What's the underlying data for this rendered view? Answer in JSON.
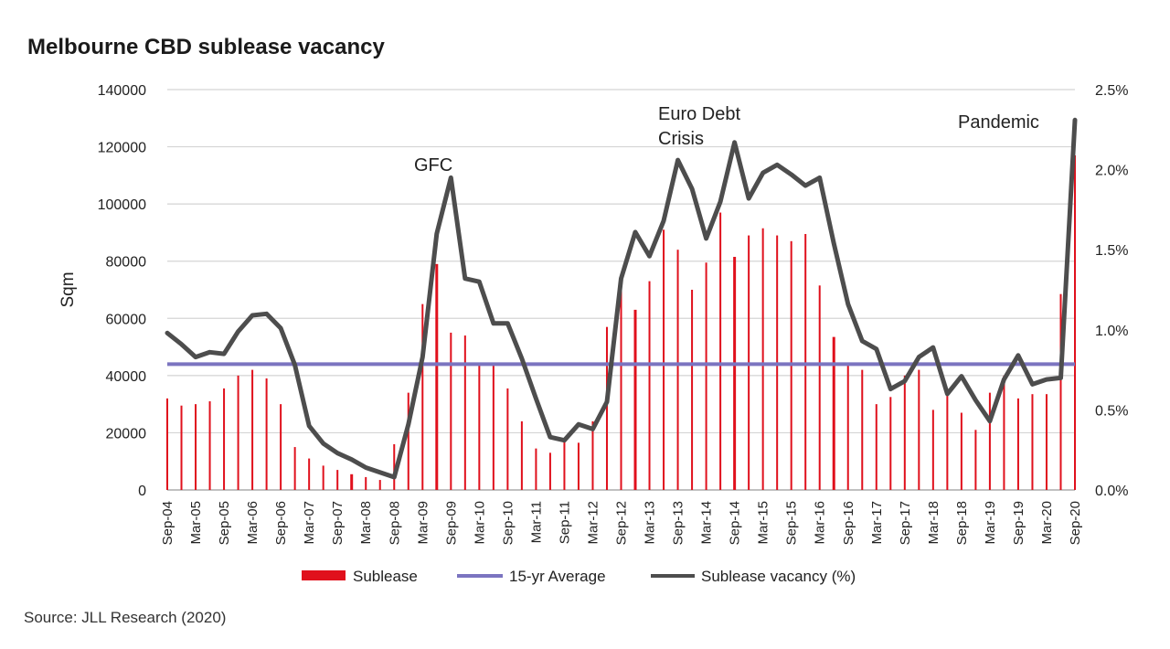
{
  "title": "Melbourne CBD sublease vacancy",
  "source": "Source: JLL Research (2020)",
  "chart_data": {
    "type": "bar",
    "title": "Melbourne CBD sublease vacancy",
    "ylabel": "Sqm",
    "ylim": [
      0,
      140000
    ],
    "y_ticks": [
      "0",
      "20000",
      "40000",
      "60000",
      "80000",
      "100000",
      "120000",
      "140000"
    ],
    "y2lim": [
      0,
      0.025
    ],
    "y2_ticks": [
      "0.0%",
      "0.5%",
      "1.0%",
      "1.5%",
      "2.0%",
      "2.5%"
    ],
    "grid": true,
    "legend_position": "bottom",
    "colors": {
      "sublease": "#e0101c",
      "average": "#7b74c0",
      "vacancy": "#4d4d4d"
    },
    "x_tick_labels": [
      "Sep-04",
      "Mar-05",
      "Sep-05",
      "Mar-06",
      "Sep-06",
      "Mar-07",
      "Sep-07",
      "Mar-08",
      "Sep-08",
      "Mar-09",
      "Sep-09",
      "Mar-10",
      "Sep-10",
      "Mar-11",
      "Sep-11",
      "Mar-12",
      "Sep-12",
      "Mar-13",
      "Sep-13",
      "Mar-14",
      "Sep-14",
      "Mar-15",
      "Sep-15",
      "Mar-16",
      "Sep-16",
      "Mar-17",
      "Sep-17",
      "Mar-18",
      "Sep-18",
      "Mar-19",
      "Sep-19",
      "Mar-20",
      "Sep-20"
    ],
    "series": [
      {
        "name": "Sublease",
        "type": "bar",
        "axis": "left",
        "values": [
          32000,
          29500,
          30000,
          31000,
          35500,
          40000,
          42000,
          39000,
          30000,
          15000,
          11000,
          8500,
          7000,
          5500,
          4500,
          3500,
          16000,
          34000,
          65000,
          79000,
          55000,
          54000,
          43500,
          44000,
          35500,
          24000,
          14500,
          13000,
          17500,
          16500,
          24000,
          57000,
          70000,
          63000,
          73000,
          91000,
          84000,
          70000,
          79500,
          97000,
          81500,
          89000,
          91500,
          89000,
          87000,
          89500,
          71500,
          53500,
          43500,
          42000,
          30000,
          32500,
          40000,
          42000,
          28000,
          33500,
          27000,
          21000,
          34000,
          40000,
          32000,
          33500,
          33500,
          68500,
          117000
        ]
      },
      {
        "name": "15-yr Average",
        "type": "line",
        "axis": "left",
        "value": 44000
      },
      {
        "name": "Sublease vacancy (%)",
        "type": "line",
        "axis": "right",
        "values": [
          0.0098,
          0.0091,
          0.0083,
          0.0086,
          0.0085,
          0.0099,
          0.0109,
          0.011,
          0.0101,
          0.0078,
          0.004,
          0.0029,
          0.0023,
          0.0019,
          0.0014,
          0.0011,
          0.0008,
          0.0041,
          0.0083,
          0.016,
          0.0195,
          0.0132,
          0.013,
          0.0104,
          0.0104,
          0.0082,
          0.0057,
          0.0033,
          0.0031,
          0.0041,
          0.0038,
          0.0055,
          0.0132,
          0.0161,
          0.0146,
          0.0168,
          0.0206,
          0.0188,
          0.0157,
          0.018,
          0.0217,
          0.0182,
          0.0198,
          0.0203,
          0.0197,
          0.019,
          0.0195,
          0.0154,
          0.0116,
          0.0093,
          0.0088,
          0.0063,
          0.0068,
          0.0083,
          0.0089,
          0.006,
          0.0071,
          0.0056,
          0.0043,
          0.0069,
          0.0084,
          0.0066,
          0.0069,
          0.007,
          0.0231
        ]
      }
    ],
    "annotations": [
      {
        "lines": [
          "GFC"
        ]
      },
      {
        "lines": [
          "Euro Debt",
          "Crisis"
        ]
      },
      {
        "lines": [
          "Pandemic"
        ]
      }
    ],
    "legend": [
      "Sublease",
      "15-yr Average",
      "Sublease vacancy (%)"
    ]
  }
}
